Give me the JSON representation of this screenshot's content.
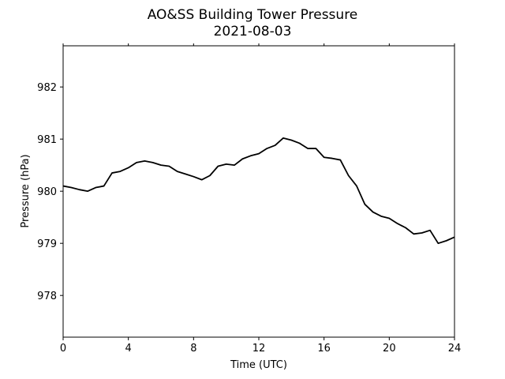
{
  "chart_data": {
    "type": "line",
    "title": "AO&SS Building Tower Pressure",
    "subtitle": "2021-08-03",
    "xlabel": "Time (UTC)",
    "ylabel": "Pressure (hPa)",
    "color": "#000000",
    "x": [
      0,
      0.5,
      1,
      1.5,
      2,
      2.5,
      3,
      3.5,
      4,
      4.5,
      5,
      5.5,
      6,
      6.5,
      7,
      7.5,
      8,
      8.5,
      9,
      9.5,
      10,
      10.5,
      11,
      11.5,
      12,
      12.5,
      13,
      13.5,
      14,
      14.5,
      15,
      15.5,
      16,
      16.5,
      17,
      17.5,
      18,
      18.5,
      19,
      19.5,
      20,
      20.5,
      21,
      21.5,
      22,
      22.5,
      23,
      23.5,
      24
    ],
    "values": [
      980.1,
      980.07,
      980.03,
      980.0,
      980.07,
      980.1,
      980.35,
      980.38,
      980.45,
      980.55,
      980.58,
      980.55,
      980.5,
      980.48,
      980.38,
      980.33,
      980.28,
      980.22,
      980.3,
      980.48,
      980.52,
      980.5,
      980.62,
      980.68,
      980.72,
      980.82,
      980.88,
      981.02,
      980.98,
      980.92,
      980.82,
      980.82,
      980.65,
      980.63,
      980.6,
      980.3,
      980.1,
      979.75,
      979.6,
      979.52,
      979.48,
      979.38,
      979.3,
      979.18,
      979.2,
      979.25,
      979.0,
      979.05,
      979.12
    ],
    "xlim": [
      0,
      24
    ],
    "xticks": [
      0,
      4,
      8,
      12,
      16,
      20,
      24
    ],
    "ylim": [
      977.2,
      982.79
    ],
    "yticks": [
      978,
      979,
      980,
      981,
      982
    ],
    "grid": false
  }
}
